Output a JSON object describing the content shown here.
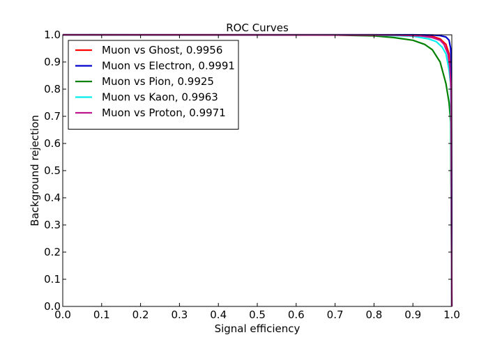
{
  "chart_data": {
    "type": "line",
    "title": "ROC Curves",
    "xlabel": "Signal efficiency",
    "ylabel": "Background rejection",
    "xlim": [
      0.0,
      1.0
    ],
    "ylim": [
      0.0,
      1.0
    ],
    "xticks": [
      "0.0",
      "0.1",
      "0.2",
      "0.3",
      "0.4",
      "0.5",
      "0.6",
      "0.7",
      "0.8",
      "0.9",
      "1.0"
    ],
    "yticks": [
      "0.0",
      "0.1",
      "0.2",
      "0.3",
      "0.4",
      "0.5",
      "0.6",
      "0.7",
      "0.8",
      "0.9",
      "1.0"
    ],
    "grid": false,
    "legend_position": "top-left",
    "series": [
      {
        "name": "Muon vs Ghost, 0.9956",
        "color": "#ff0000",
        "points": [
          [
            0.0,
            1.0
          ],
          [
            0.8,
            1.0
          ],
          [
            0.9,
            0.998
          ],
          [
            0.95,
            0.994
          ],
          [
            0.97,
            0.985
          ],
          [
            0.985,
            0.965
          ],
          [
            0.993,
            0.93
          ],
          [
            0.997,
            0.85
          ],
          [
            0.999,
            0.65
          ],
          [
            1.0,
            0.0
          ]
        ]
      },
      {
        "name": "Muon vs Electron, 0.9991",
        "color": "#0000cc",
        "points": [
          [
            0.0,
            1.0
          ],
          [
            0.9,
            1.0
          ],
          [
            0.95,
            0.999
          ],
          [
            0.97,
            0.997
          ],
          [
            0.985,
            0.992
          ],
          [
            0.993,
            0.98
          ],
          [
            0.997,
            0.95
          ],
          [
            0.999,
            0.88
          ],
          [
            1.0,
            0.0
          ]
        ]
      },
      {
        "name": "Muon vs Pion, 0.9925",
        "color": "#008000",
        "points": [
          [
            0.0,
            1.0
          ],
          [
            0.7,
            0.999
          ],
          [
            0.8,
            0.996
          ],
          [
            0.85,
            0.99
          ],
          [
            0.9,
            0.98
          ],
          [
            0.93,
            0.965
          ],
          [
            0.95,
            0.945
          ],
          [
            0.97,
            0.9
          ],
          [
            0.985,
            0.82
          ],
          [
            0.993,
            0.75
          ],
          [
            0.997,
            0.68
          ],
          [
            1.0,
            0.0
          ]
        ]
      },
      {
        "name": "Muon vs Kaon, 0.9963",
        "color": "#00eeee",
        "points": [
          [
            0.0,
            1.0
          ],
          [
            0.8,
            0.999
          ],
          [
            0.9,
            0.995
          ],
          [
            0.94,
            0.985
          ],
          [
            0.96,
            0.975
          ],
          [
            0.975,
            0.955
          ],
          [
            0.985,
            0.93
          ],
          [
            0.993,
            0.87
          ],
          [
            0.997,
            0.82
          ],
          [
            1.0,
            0.0
          ]
        ]
      },
      {
        "name": "Muon vs Proton, 0.9971",
        "color": "#c0148c",
        "points": [
          [
            0.0,
            1.0
          ],
          [
            0.85,
            0.999
          ],
          [
            0.92,
            0.996
          ],
          [
            0.95,
            0.99
          ],
          [
            0.97,
            0.98
          ],
          [
            0.98,
            0.965
          ],
          [
            0.99,
            0.93
          ],
          [
            0.995,
            0.88
          ],
          [
            0.998,
            0.8
          ],
          [
            1.0,
            0.0
          ]
        ]
      }
    ]
  }
}
